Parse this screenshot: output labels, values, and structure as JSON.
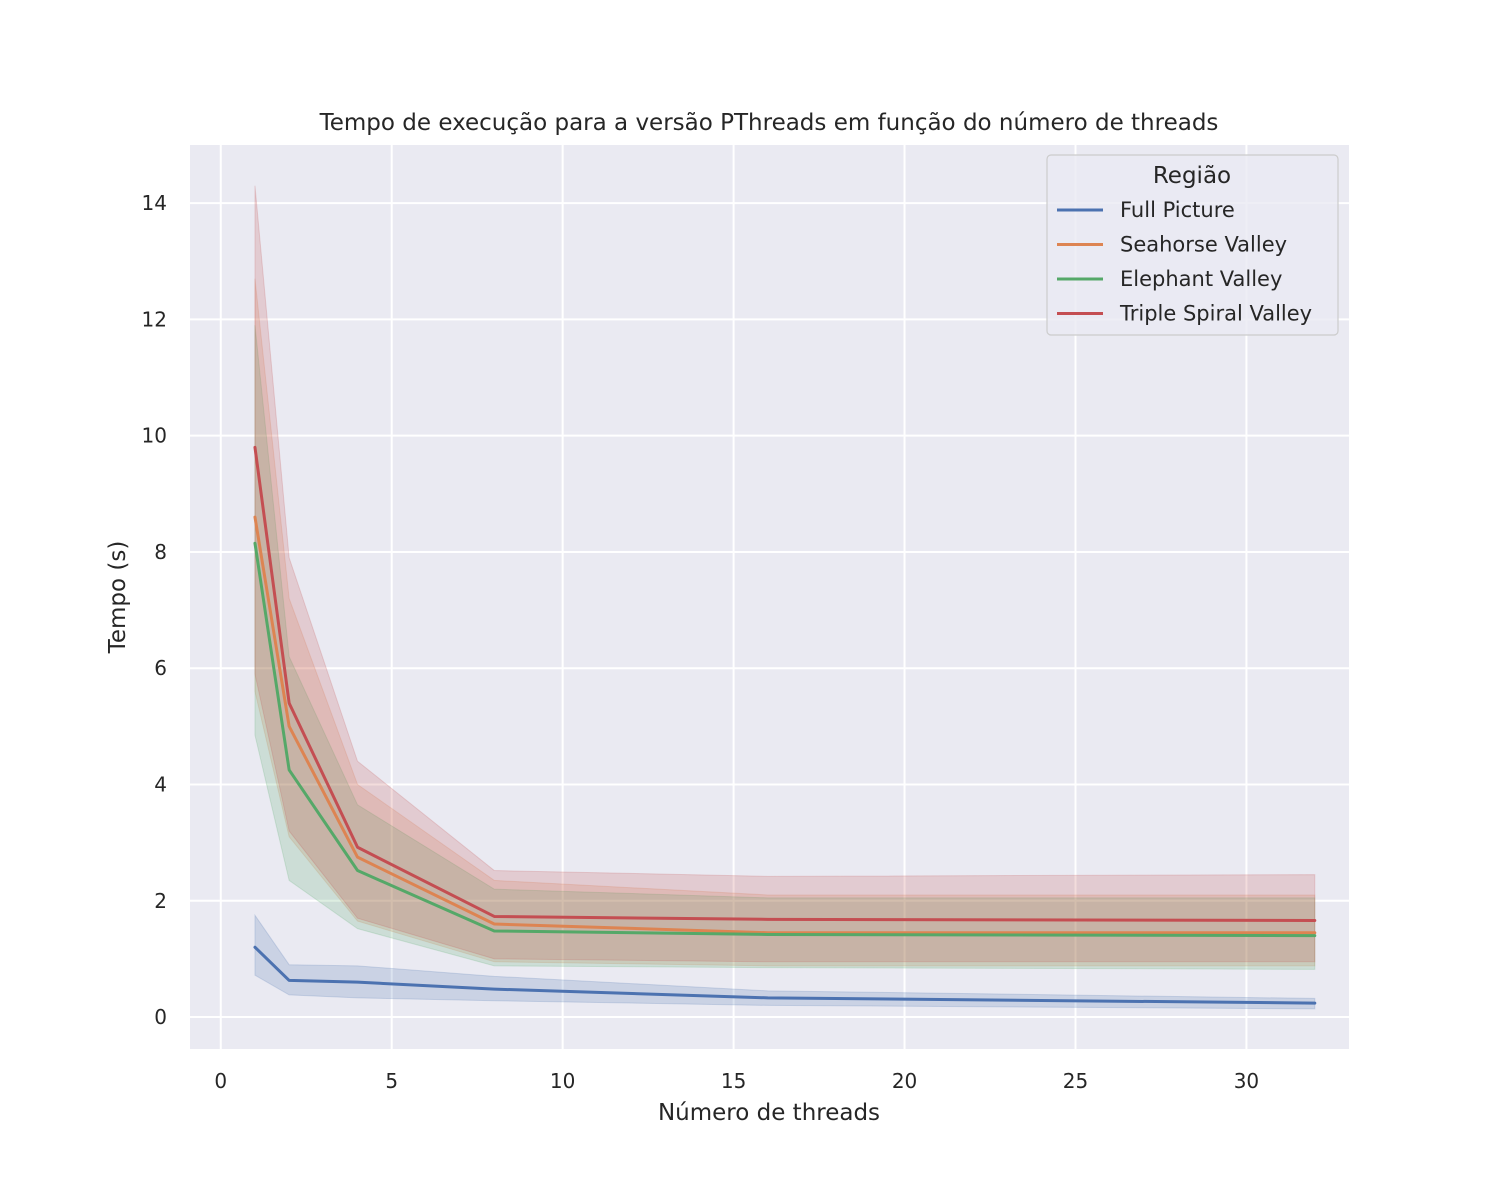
{
  "chart_data": {
    "type": "line",
    "title": "Tempo de execução para a versão PThreads em função do número de threads",
    "xlabel": "Número de threads",
    "ylabel": "Tempo (s)",
    "xlim": [
      -0.9,
      33.0
    ],
    "ylim": [
      -0.55,
      15.0
    ],
    "xticks": [
      0,
      5,
      10,
      15,
      20,
      25,
      30
    ],
    "yticks": [
      0,
      2,
      4,
      6,
      8,
      10,
      12,
      14
    ],
    "grid": true,
    "legend": {
      "title": "Região",
      "position": "top-right"
    },
    "x": [
      1,
      2,
      4,
      8,
      16,
      32
    ],
    "series": [
      {
        "name": "Full Picture",
        "color": "#4c72b0",
        "values": [
          1.2,
          0.63,
          0.6,
          0.48,
          0.33,
          0.24
        ],
        "band_lower": [
          0.72,
          0.38,
          0.33,
          0.28,
          0.2,
          0.14
        ],
        "band_upper": [
          1.75,
          0.9,
          0.88,
          0.7,
          0.45,
          0.32
        ]
      },
      {
        "name": "Seahorse Valley",
        "color": "#dd8452",
        "values": [
          8.6,
          5.0,
          2.75,
          1.6,
          1.45,
          1.45
        ],
        "band_lower": [
          5.6,
          3.1,
          1.65,
          0.95,
          0.88,
          0.88
        ],
        "band_upper": [
          12.7,
          7.2,
          4.0,
          2.35,
          2.1,
          2.1
        ]
      },
      {
        "name": "Elephant Valley",
        "color": "#55a868",
        "values": [
          8.15,
          4.25,
          2.52,
          1.48,
          1.42,
          1.4
        ],
        "band_lower": [
          4.85,
          2.35,
          1.52,
          0.88,
          0.85,
          0.82
        ],
        "band_upper": [
          11.9,
          6.2,
          3.65,
          2.2,
          2.05,
          2.05
        ]
      },
      {
        "name": "Triple Spiral Valley",
        "color": "#c44e52",
        "values": [
          9.8,
          5.4,
          2.92,
          1.73,
          1.68,
          1.66
        ],
        "band_lower": [
          5.9,
          3.2,
          1.7,
          1.0,
          0.95,
          0.95
        ],
        "band_upper": [
          14.3,
          7.9,
          4.4,
          2.52,
          2.42,
          2.45
        ]
      }
    ]
  }
}
